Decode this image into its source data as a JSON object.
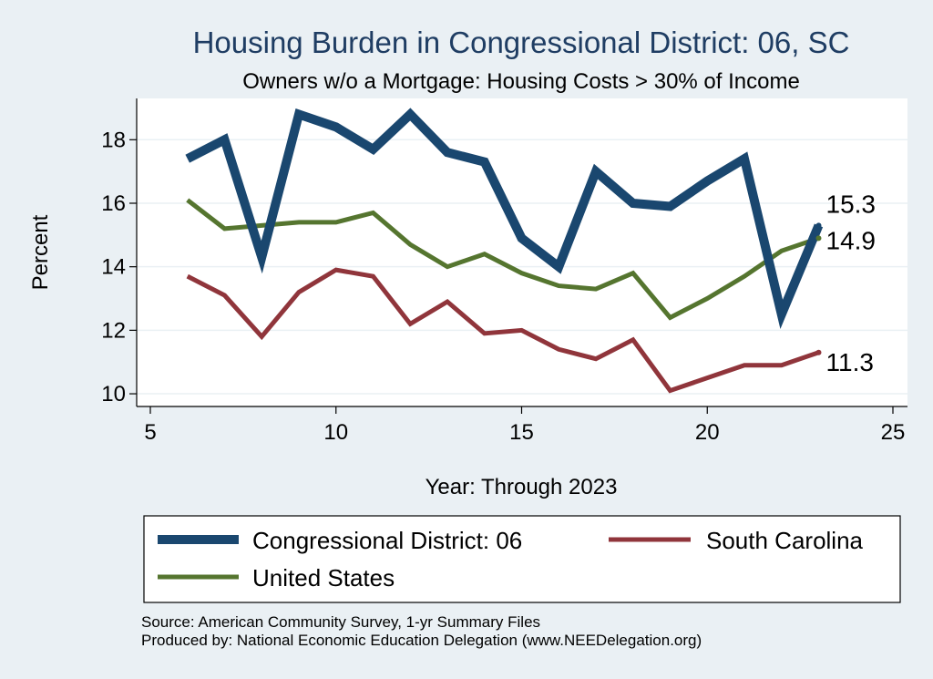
{
  "chart_data": {
    "type": "line",
    "title": "Housing Burden in Congressional District:  06, SC",
    "subtitle": "Owners w/o a Mortgage: Housing Costs > 30% of Income",
    "xlabel": "Year: Through 2023",
    "ylabel": "Percent",
    "xlim": [
      5,
      25
    ],
    "ylim": [
      9.6,
      19.3
    ],
    "xticks": [
      5,
      10,
      15,
      20,
      25
    ],
    "yticks": [
      10,
      12,
      14,
      16,
      18
    ],
    "grid": true,
    "x": [
      6,
      7,
      8,
      9,
      10,
      11,
      12,
      13,
      14,
      15,
      16,
      17,
      18,
      19,
      20,
      21,
      22,
      23
    ],
    "series": [
      {
        "name": "Congressional District:  06",
        "color": "#1a476f",
        "values": [
          17.4,
          18.0,
          14.3,
          18.8,
          18.4,
          17.7,
          18.8,
          17.6,
          17.3,
          14.9,
          14.0,
          17.0,
          16.0,
          15.9,
          16.7,
          17.4,
          12.5,
          15.3
        ],
        "end_label": "15.3"
      },
      {
        "name": "South Carolina",
        "color": "#90353b",
        "values": [
          13.7,
          13.1,
          11.8,
          13.2,
          13.9,
          13.7,
          12.2,
          12.9,
          11.9,
          12.0,
          11.4,
          11.1,
          11.7,
          10.1,
          10.5,
          10.9,
          10.9,
          11.3
        ],
        "end_label": "11.3"
      },
      {
        "name": "United States",
        "color": "#55752f",
        "values": [
          16.1,
          15.2,
          15.3,
          15.4,
          15.4,
          15.7,
          14.7,
          14.0,
          14.4,
          13.8,
          13.4,
          13.3,
          13.8,
          12.4,
          13.0,
          13.7,
          14.5,
          14.9
        ],
        "end_label": "14.9"
      }
    ],
    "legend": {
      "placement": "bottom",
      "items": [
        "Congressional District:  06",
        "South Carolina",
        "United States"
      ]
    }
  },
  "footer": {
    "source": "Source: American Community Survey, 1-yr Summary Files",
    "produced_by": "Produced by: National Economic Education Delegation (www.NEEDelegation.org)"
  }
}
